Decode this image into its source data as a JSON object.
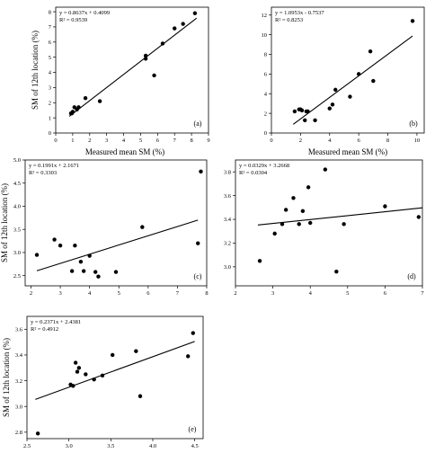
{
  "chart_data": [
    {
      "type": "scatter",
      "panel_label": "(a)",
      "equation": "y = 0.8637x + 0.4099",
      "r2": "R² = 0.9539",
      "xlabel": "Measured mean SM (%)",
      "ylabel": "SM of 12th location (%)",
      "xlim": [
        0,
        9
      ],
      "ylim": [
        0,
        8.3
      ],
      "xticks": [
        "0",
        "1",
        "2",
        "3",
        "4",
        "5",
        "6",
        "7",
        "8",
        "9"
      ],
      "yticks": [
        "0",
        "1",
        "2",
        "3",
        "4",
        "5",
        "6",
        "7",
        "8"
      ],
      "x": [
        0.9,
        0.95,
        1.0,
        1.1,
        1.25,
        1.35,
        1.75,
        2.6,
        5.3,
        5.3,
        5.8,
        6.3,
        7.0,
        7.5,
        8.2
      ],
      "y": [
        1.3,
        1.3,
        1.4,
        1.7,
        1.55,
        1.7,
        2.3,
        2.1,
        4.9,
        5.1,
        3.8,
        5.9,
        6.9,
        7.2,
        7.9
      ],
      "fit": {
        "slope": 0.8637,
        "intercept": 0.4099,
        "x_range": [
          0.8,
          8.3
        ]
      }
    },
    {
      "type": "scatter",
      "panel_label": "(b)",
      "equation": "y = 1.0953x - 0.7537",
      "r2": "R² = 0.8253",
      "xlabel": "Measured mean SM (%)",
      "ylabel": "",
      "xlim": [
        0,
        10.5
      ],
      "ylim": [
        0,
        12.8
      ],
      "xticks": [
        "0",
        "2",
        "4",
        "6",
        "8",
        "10"
      ],
      "yticks": [
        "0",
        "2",
        "4",
        "6",
        "8",
        "10",
        "12"
      ],
      "x": [
        1.6,
        1.9,
        2.0,
        2.1,
        2.3,
        2.4,
        2.5,
        3.0,
        4.0,
        4.2,
        4.4,
        5.4,
        6.0,
        6.8,
        7.0,
        9.7
      ],
      "y": [
        2.2,
        2.4,
        2.4,
        2.3,
        1.3,
        2.2,
        2.2,
        1.3,
        2.5,
        2.9,
        4.4,
        3.7,
        6.0,
        8.3,
        5.3,
        11.4
      ],
      "fit": {
        "slope": 1.0953,
        "intercept": -0.7537,
        "x_range": [
          1.5,
          9.7
        ]
      }
    },
    {
      "type": "scatter",
      "panel_label": "(c)",
      "equation": "y = 0.1991x + 2.1671",
      "r2": "R² = 0.3303",
      "xlabel": "",
      "ylabel": "SM of 12th location (%)",
      "xlim": [
        1.8,
        8.0
      ],
      "ylim": [
        2.28,
        5.0
      ],
      "xticks": [
        "2",
        "3",
        "4",
        "5",
        "6",
        "7",
        "8"
      ],
      "yticks": [
        "2.5",
        "3.0",
        "3.5",
        "4.0",
        "4.5",
        "5.0"
      ],
      "x": [
        2.2,
        2.8,
        3.0,
        3.4,
        3.5,
        3.7,
        3.8,
        4.0,
        4.2,
        4.3,
        4.9,
        5.8,
        7.7,
        7.8
      ],
      "y": [
        2.95,
        3.28,
        3.15,
        2.6,
        3.15,
        2.8,
        2.6,
        2.93,
        2.58,
        2.48,
        2.58,
        3.55,
        3.2,
        4.75
      ],
      "fit": {
        "slope": 0.1991,
        "intercept": 2.1671,
        "x_range": [
          2.2,
          7.7
        ]
      }
    },
    {
      "type": "scatter",
      "panel_label": "(d)",
      "equation": "y = 0.0329x + 3.2668",
      "r2": "R² = 0.0304",
      "xlabel": "",
      "ylabel": "",
      "xlim": [
        2,
        7
      ],
      "ylim": [
        2.84,
        3.9
      ],
      "xticks": [
        "2",
        "3",
        "4",
        "5",
        "6",
        "7"
      ],
      "yticks": [
        "3.0",
        "3.2",
        "3.4",
        "3.6",
        "3.8"
      ],
      "x": [
        2.65,
        3.05,
        3.25,
        3.35,
        3.55,
        3.7,
        3.8,
        3.95,
        4.0,
        4.4,
        4.7,
        4.9,
        6.0,
        6.9
      ],
      "y": [
        3.05,
        3.28,
        3.36,
        3.48,
        3.58,
        3.36,
        3.47,
        3.67,
        3.37,
        3.82,
        2.96,
        3.36,
        3.51,
        3.42
      ],
      "fit": {
        "slope": 0.0329,
        "intercept": 3.2668,
        "x_range": [
          2.6,
          7.0
        ]
      }
    },
    {
      "type": "scatter",
      "panel_label": "(e)",
      "equation": "y = 0.2371x + 2.4381",
      "r2": "R² = 0.4912",
      "xlabel": "",
      "ylabel": "SM of 12th location (%)",
      "xlim": [
        2.5,
        4.6
      ],
      "ylim": [
        2.75,
        3.7
      ],
      "xticks": [
        "2.5",
        "3.0",
        "3.5",
        "4.0",
        "4.5"
      ],
      "yticks": [
        "2.8",
        "3.0",
        "3.2",
        "3.4",
        "3.6"
      ],
      "x": [
        2.63,
        3.02,
        3.05,
        3.08,
        3.1,
        3.12,
        3.2,
        3.3,
        3.4,
        3.52,
        3.8,
        3.85,
        4.42,
        4.48
      ],
      "y": [
        2.79,
        3.17,
        3.16,
        3.34,
        3.27,
        3.3,
        3.25,
        3.21,
        3.24,
        3.4,
        3.43,
        3.08,
        3.39,
        3.57
      ],
      "fit": {
        "slope": 0.2371,
        "intercept": 2.4381,
        "x_range": [
          2.6,
          4.5
        ]
      }
    }
  ]
}
